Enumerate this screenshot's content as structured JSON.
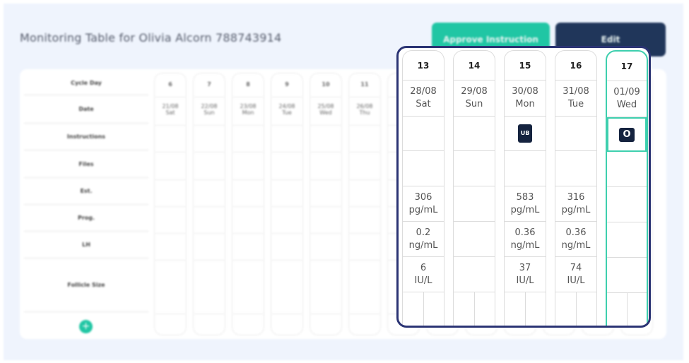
{
  "header": {
    "title": "Monitoring Table for Olivia Alcorn  788743914",
    "approve_label": "Approve Instruction",
    "edit_label": "Edit"
  },
  "row_labels": [
    "Cycle Day",
    "Date",
    "Instructions",
    "Files",
    "Est.",
    "Prog.",
    "LH",
    "Follicle Size"
  ],
  "background_columns": [
    {
      "day": "6",
      "date": "21/08",
      "weekday": "Sat"
    },
    {
      "day": "7",
      "date": "22/08",
      "weekday": "Sun"
    },
    {
      "day": "8",
      "date": "23/08",
      "weekday": "Mon"
    },
    {
      "day": "9",
      "date": "24/08",
      "weekday": "Tue"
    },
    {
      "day": "10",
      "date": "25/08",
      "weekday": "Wed"
    },
    {
      "day": "11",
      "date": "26/08",
      "weekday": "Thu"
    }
  ],
  "callout_columns": [
    {
      "day": "13",
      "date": "28/08",
      "weekday": "Sat",
      "instruction": "",
      "est": "306",
      "est_unit": "pg/mL",
      "prog": "0.2",
      "prog_unit": "ng/mL",
      "lh": "6",
      "lh_unit": "IU/L"
    },
    {
      "day": "14",
      "date": "29/08",
      "weekday": "Sun",
      "instruction": "",
      "est": "",
      "est_unit": "",
      "prog": "",
      "prog_unit": "",
      "lh": "",
      "lh_unit": ""
    },
    {
      "day": "15",
      "date": "30/08",
      "weekday": "Mon",
      "instruction": "UB",
      "est": "583",
      "est_unit": "pg/mL",
      "prog": "0.36",
      "prog_unit": "ng/mL",
      "lh": "37",
      "lh_unit": "IU/L"
    },
    {
      "day": "16",
      "date": "31/08",
      "weekday": "Tue",
      "instruction": "",
      "est": "316",
      "est_unit": "pg/mL",
      "prog": "0.36",
      "prog_unit": "ng/mL",
      "lh": "74",
      "lh_unit": "IU/L"
    },
    {
      "day": "17",
      "date": "01/09",
      "weekday": "Wed",
      "instruction": "O",
      "est": "",
      "est_unit": "",
      "prog": "",
      "prog_unit": "",
      "lh": "",
      "lh_unit": "",
      "selected": true
    }
  ],
  "colors": {
    "accent": "#20c6a4",
    "dark": "#20365a",
    "callout_border": "#2b3474",
    "selected": "#3ecfae"
  },
  "icons": {
    "add": "plus-circle-icon"
  }
}
